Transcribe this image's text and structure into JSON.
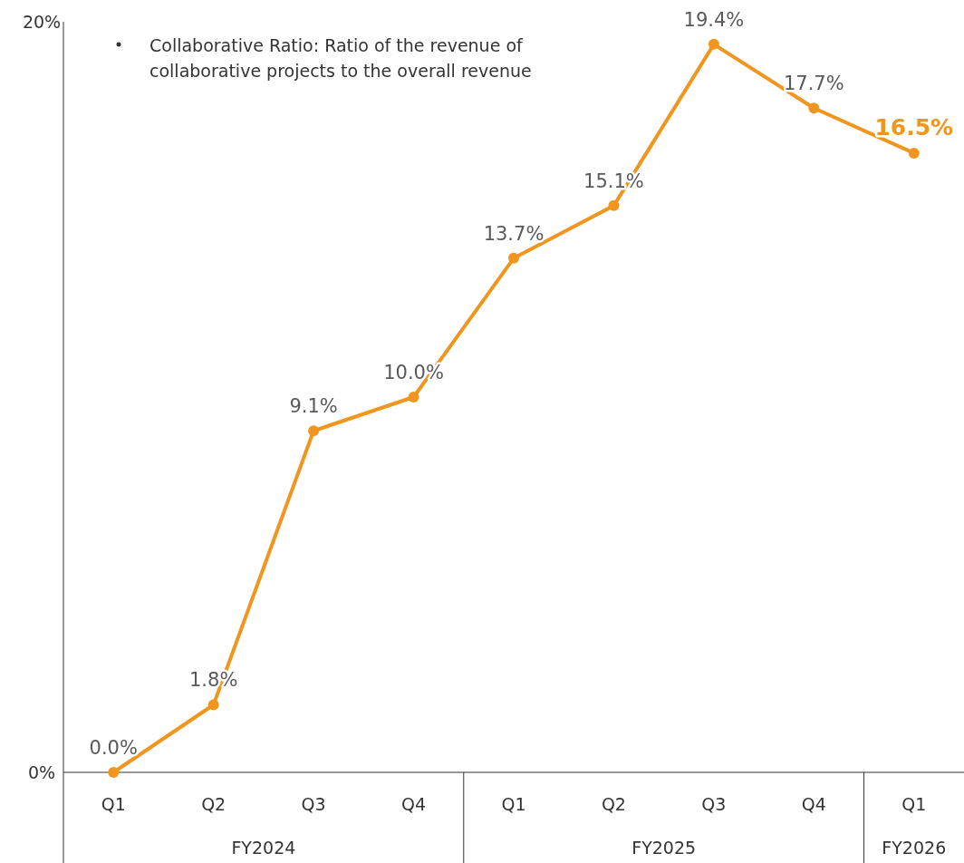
{
  "chart_data": {
    "type": "line",
    "categories": [
      "Q1",
      "Q2",
      "Q3",
      "Q4",
      "Q1",
      "Q2",
      "Q3",
      "Q4",
      "Q1"
    ],
    "series": [
      {
        "color": "#f0961e",
        "values": [
          0.0,
          1.8,
          9.1,
          10.0,
          13.7,
          15.1,
          19.4,
          17.7,
          16.5
        ],
        "value_labels": [
          "0.0%",
          "1.8%",
          "9.1%",
          "10.0%",
          "13.7%",
          "15.1%",
          "19.4%",
          "17.7%",
          "16.5%"
        ]
      }
    ],
    "ylim": [
      0,
      20
    ],
    "yticks": [
      {
        "value": 0,
        "label": "0%"
      },
      {
        "value": 20,
        "label": "20%"
      }
    ],
    "annotations": [
      "Collaborative Ratio: Ratio of the revenue of collaborative projects to the overall revenue",
      "FY2024",
      "FY2025",
      "FY2026"
    ],
    "grid": false,
    "marker": "circle",
    "line_style": "solid"
  }
}
